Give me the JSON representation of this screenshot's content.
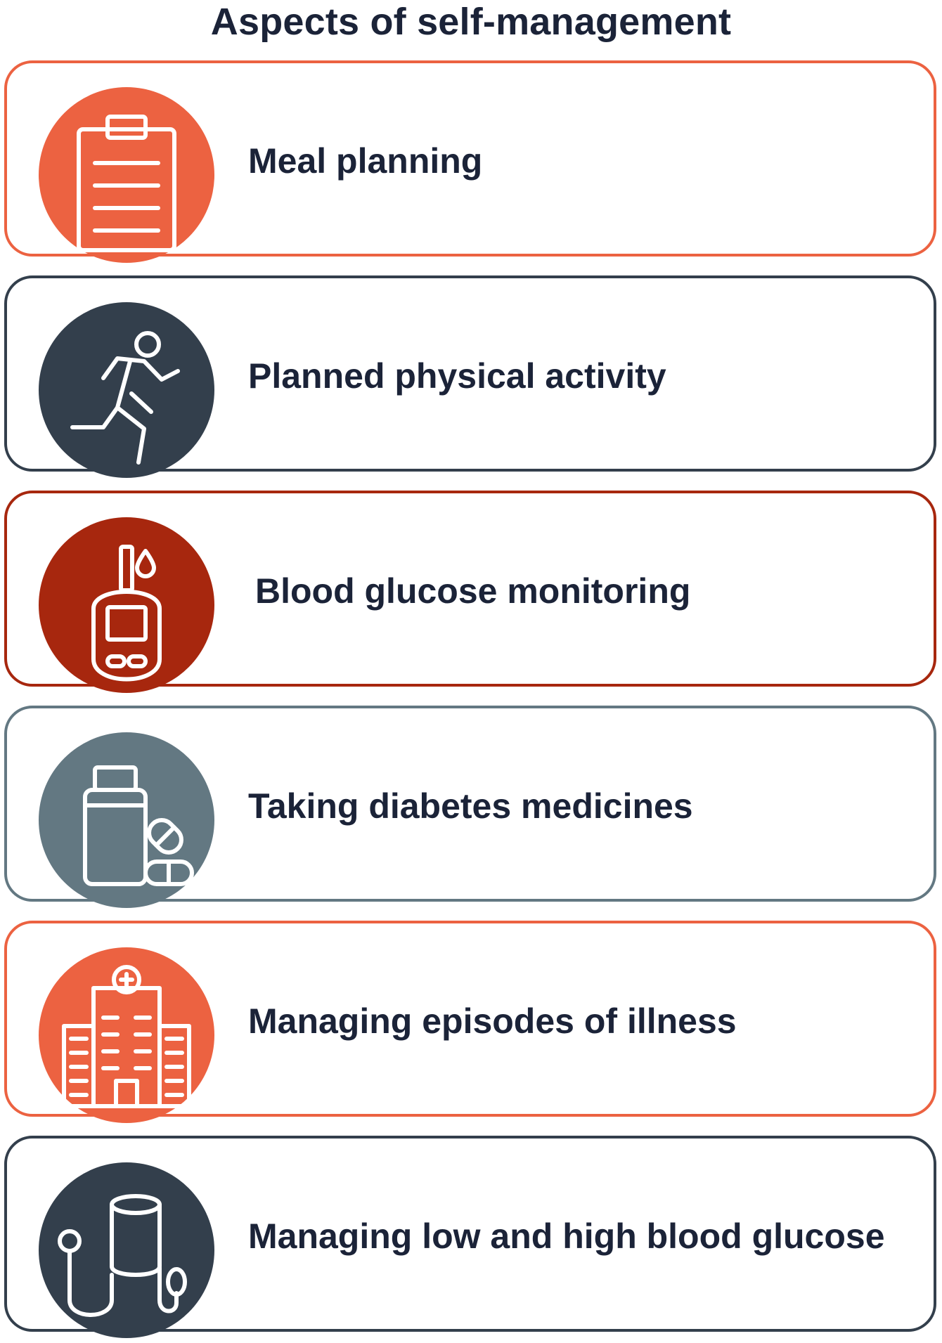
{
  "title": "Aspects of self-management",
  "items": [
    {
      "label": "Meal planning",
      "icon": "clipboard-icon",
      "color": "#ec6241",
      "border": "#ec6241"
    },
    {
      "label": "Planned physical activity",
      "icon": "running-person-icon",
      "color": "#333f4c",
      "border": "#333f4c"
    },
    {
      "label": "Blood glucose monitoring",
      "icon": "glucose-meter-icon",
      "color": "#a7270e",
      "border": "#a7270e"
    },
    {
      "label": "Taking diabetes medicines",
      "icon": "pill-bottle-icon",
      "color": "#637882",
      "border": "#637882"
    },
    {
      "label": "Managing episodes of illness",
      "icon": "hospital-icon",
      "color": "#ec6241",
      "border": "#ec6241"
    },
    {
      "label": "Managing low and high blood glucose",
      "icon": "blood-pressure-cuff-icon",
      "color": "#333f4c",
      "border": "#333f4c"
    }
  ]
}
